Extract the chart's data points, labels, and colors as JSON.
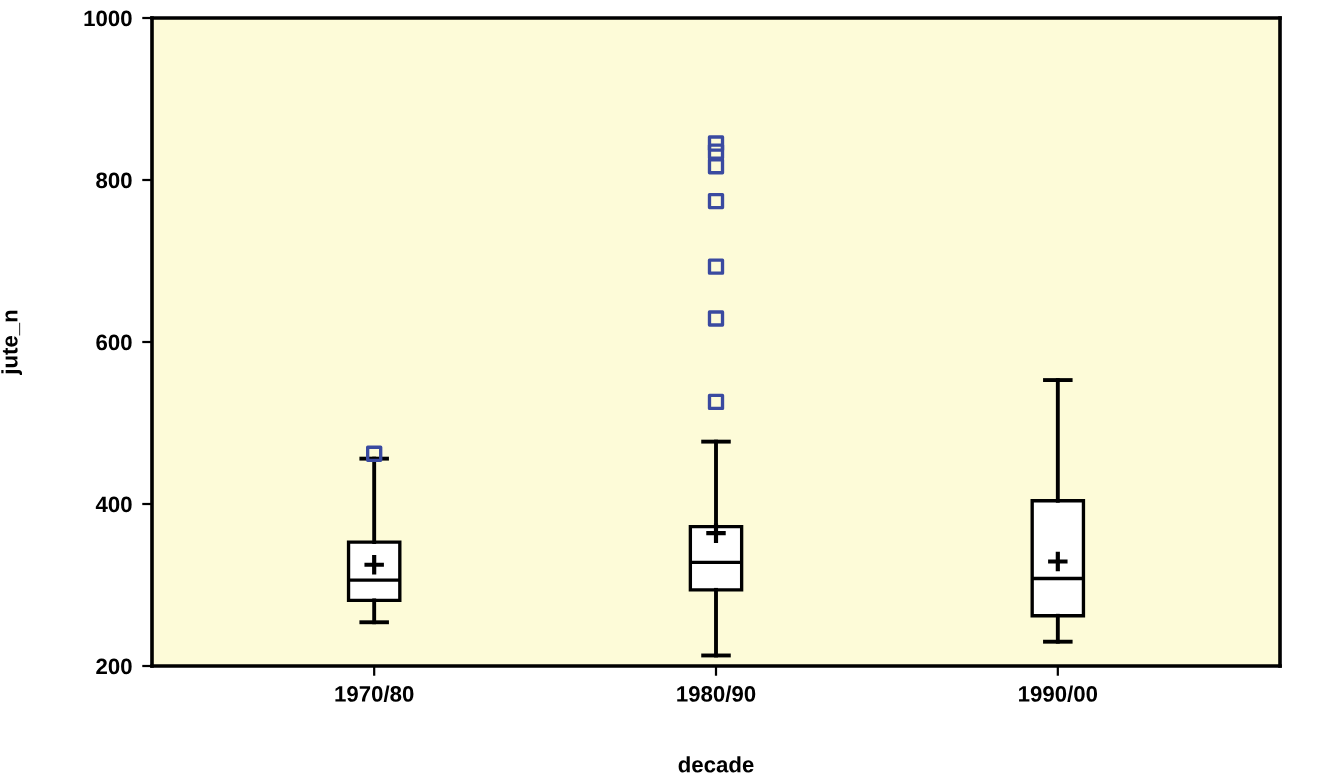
{
  "chart_data": {
    "type": "box",
    "xlabel": "decade",
    "ylabel": "jute_n",
    "categories": [
      "1970/80",
      "1980/90",
      "1990/00"
    ],
    "boxes": [
      {
        "low": 254,
        "q1": 281,
        "median": 306,
        "q3": 353,
        "high": 456,
        "mean": 325
      },
      {
        "low": 213,
        "q1": 294,
        "median": 328,
        "q3": 372,
        "high": 477,
        "mean": 364
      },
      {
        "low": 230,
        "q1": 262,
        "median": 308,
        "q3": 404,
        "high": 553,
        "mean": 329
      }
    ],
    "series": [
      {
        "type": "scatter",
        "color": "#3a4aa0",
        "marker": "square",
        "x": [
          "1970/80",
          "1980/90",
          "1980/90",
          "1980/90",
          "1980/90",
          "1980/90",
          "1980/90",
          "1980/90"
        ],
        "values": [
          462,
          526,
          629,
          693,
          774,
          817,
          835,
          845
        ]
      }
    ],
    "ylim": [
      200,
      1000
    ],
    "yticks": [
      200,
      400,
      600,
      800,
      1000
    ],
    "grid": false
  }
}
